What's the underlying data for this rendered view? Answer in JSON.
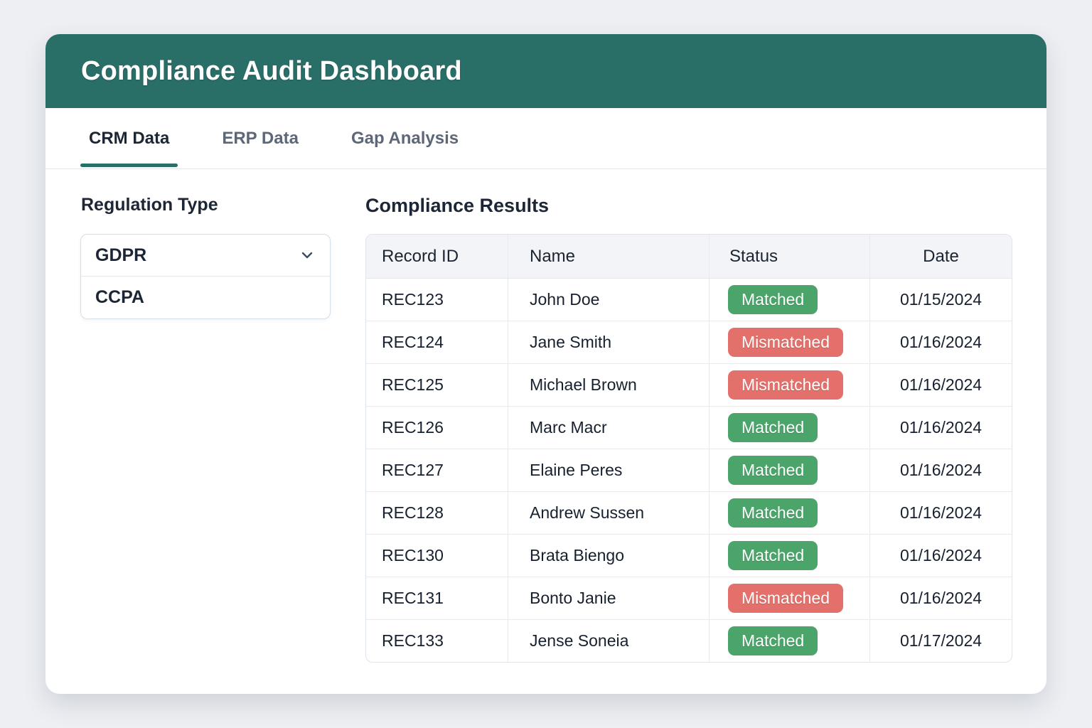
{
  "header": {
    "title": "Compliance Audit Dashboard"
  },
  "tabs": [
    {
      "label": "CRM Data",
      "active": true
    },
    {
      "label": "ERP Data",
      "active": false
    },
    {
      "label": "Gap Analysis",
      "active": false
    }
  ],
  "filter": {
    "label": "Regulation Type",
    "selected_value": "GDPR",
    "dropdown_option": "CCPA",
    "chevron_icon": "chevron-down"
  },
  "results": {
    "title": "Compliance Results",
    "columns": [
      "Record ID",
      "Name",
      "Status",
      "Date"
    ],
    "rows": [
      {
        "record_id": "REC123",
        "name": "John Doe",
        "status": "Matched",
        "date": "01/15/2024"
      },
      {
        "record_id": "REC124",
        "name": "Jane Smith",
        "status": "Mismatched",
        "date": "01/16/2024"
      },
      {
        "record_id": "REC125",
        "name": "Michael Brown",
        "status": "Mismatched",
        "date": "01/16/2024"
      },
      {
        "record_id": "REC126",
        "name": "Marc Macr",
        "status": "Matched",
        "date": "01/16/2024"
      },
      {
        "record_id": "REC127",
        "name": "Elaine Peres",
        "status": "Matched",
        "date": "01/16/2024"
      },
      {
        "record_id": "REC128",
        "name": "Andrew Sussen",
        "status": "Matched",
        "date": "01/16/2024"
      },
      {
        "record_id": "REC130",
        "name": "Brata Biengo",
        "status": "Matched",
        "date": "01/16/2024"
      },
      {
        "record_id": "REC131",
        "name": "Bonto Janie",
        "status": "Mismatched",
        "date": "01/16/2024"
      },
      {
        "record_id": "REC133",
        "name": "Jense Soneia",
        "status": "Matched",
        "date": "01/17/2024"
      }
    ]
  },
  "colors": {
    "header_teal": "#2a6e68",
    "matched_green": "#4ba46a",
    "mismatched_red": "#e3706a",
    "page_background": "#edeff3",
    "heading_text": "#1c2634"
  }
}
